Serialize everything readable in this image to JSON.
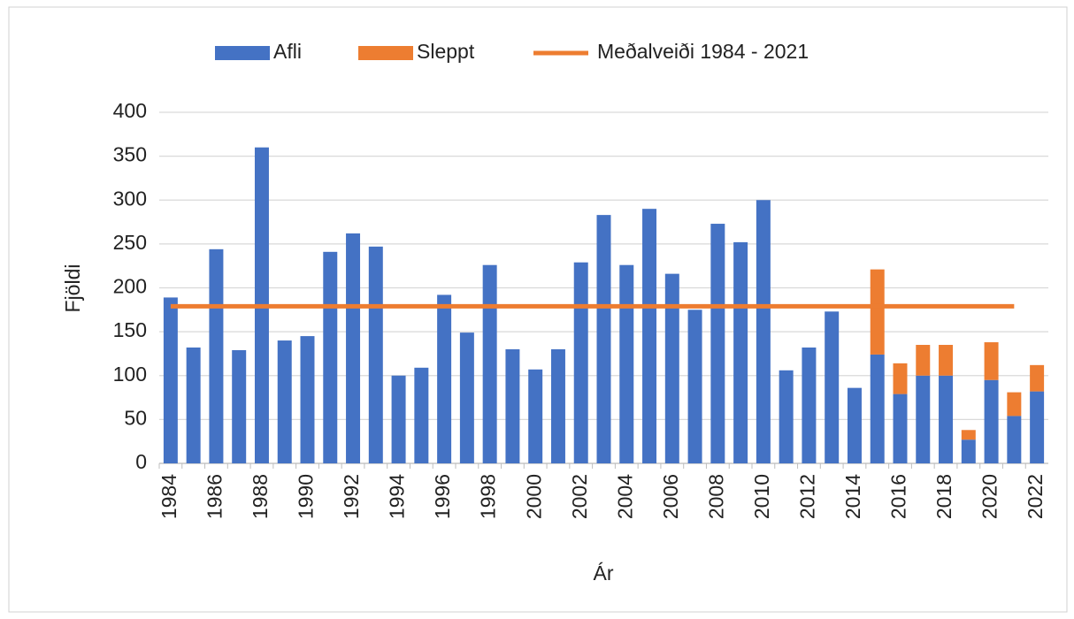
{
  "chart_data": {
    "type": "bar",
    "stacked": true,
    "x_label": "Ár",
    "y_label": "Fjöldi",
    "categories": [
      "1984",
      null,
      "1986",
      null,
      "1988",
      null,
      "1990",
      null,
      "1992",
      null,
      "1994",
      null,
      "1996",
      null,
      "1998",
      null,
      "2000",
      null,
      "2002",
      null,
      "2004",
      null,
      "2006",
      null,
      "2008",
      null,
      "2010",
      null,
      "2012",
      null,
      "2014",
      null,
      "2016",
      null,
      "2018",
      null,
      "2020",
      null,
      "2022"
    ],
    "series": [
      {
        "name": "Afli",
        "color": "#4472c4",
        "values": [
          189,
          132,
          244,
          129,
          360,
          140,
          145,
          241,
          262,
          247,
          100,
          109,
          192,
          149,
          226,
          130,
          107,
          130,
          229,
          283,
          226,
          290,
          216,
          175,
          273,
          252,
          300,
          106,
          132,
          173,
          86,
          124,
          79,
          100,
          100,
          27,
          95,
          54,
          82
        ]
      },
      {
        "name": "Sleppt",
        "color": "#ed7d31",
        "values": [
          0,
          0,
          0,
          0,
          0,
          0,
          0,
          0,
          0,
          0,
          0,
          0,
          0,
          0,
          0,
          0,
          0,
          0,
          0,
          0,
          0,
          0,
          0,
          0,
          0,
          0,
          0,
          0,
          0,
          0,
          0,
          97,
          35,
          35,
          35,
          11,
          43,
          27,
          30
        ]
      },
      {
        "name": "Meðalveiði 1984 - 2021",
        "type": "line",
        "color": "#ed7d31",
        "values": [
          179,
          179,
          179,
          179,
          179,
          179,
          179,
          179,
          179,
          179,
          179,
          179,
          179,
          179,
          179,
          179,
          179,
          179,
          179,
          179,
          179,
          179,
          179,
          179,
          179,
          179,
          179,
          179,
          179,
          179,
          179,
          179,
          179,
          179,
          179,
          179,
          179,
          179,
          null
        ]
      }
    ],
    "ylim": [
      0,
      400
    ],
    "yticks": [
      0,
      50,
      100,
      150,
      200,
      250,
      300,
      350,
      400
    ],
    "grid": true,
    "legend": "top"
  }
}
